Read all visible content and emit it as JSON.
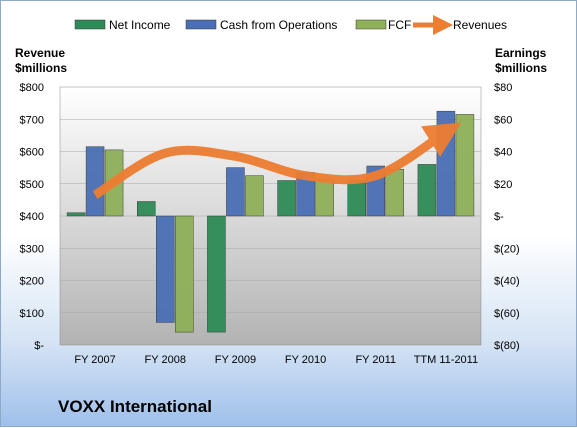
{
  "left_axis_title": [
    "Revenue",
    "$millions"
  ],
  "right_axis_title": [
    "Earnings",
    "$millions"
  ],
  "company_label": "VOXX International",
  "chart_data": {
    "type": "bar",
    "categories": [
      "FY 2007",
      "FY 2008",
      "FY 2009",
      "FY 2010",
      "FY 2011",
      "TTM 11-2011"
    ],
    "series": [
      {
        "name": "Net Income",
        "axis": "right",
        "color": "#2e8b57",
        "values": [
          2,
          9,
          -72,
          22,
          22,
          32
        ]
      },
      {
        "name": "Cash from Operations",
        "axis": "right",
        "color": "#4a6fb5",
        "values": [
          43,
          -66,
          30,
          27,
          31,
          65
        ]
      },
      {
        "name": "FCF",
        "axis": "right",
        "color": "#8fb05a",
        "values": [
          41,
          -72,
          25,
          23,
          29,
          63
        ]
      },
      {
        "name": "Revenues",
        "axis": "left",
        "type": "line",
        "color": "#ed7d31",
        "values": [
          465,
          595,
          585,
          525,
          525,
          660
        ]
      }
    ],
    "left_axis": {
      "ylim": [
        0,
        800
      ],
      "ticks": [
        "$-",
        "$100",
        "$200",
        "$300",
        "$400",
        "$500",
        "$600",
        "$700",
        "$800"
      ]
    },
    "right_axis": {
      "ylim": [
        -80,
        80
      ],
      "ticks": [
        "$(80)",
        "$(60)",
        "$(40)",
        "$(20)",
        "$-",
        "$20",
        "$40",
        "$60",
        "$80"
      ]
    },
    "legend": {
      "position": "top",
      "entries": [
        "Net Income",
        "Cash from Operations",
        "FCF",
        "Revenues"
      ]
    }
  }
}
